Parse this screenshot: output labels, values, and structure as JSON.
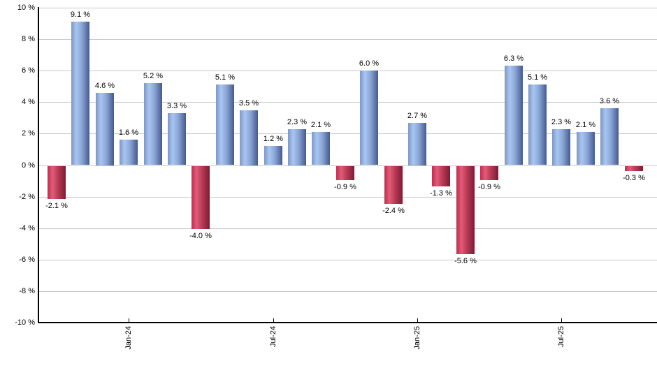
{
  "chart_data": {
    "type": "bar",
    "title": "",
    "unit": "%",
    "values": [
      -2.1,
      9.1,
      4.6,
      1.6,
      5.2,
      3.3,
      -4.0,
      5.1,
      3.5,
      1.2,
      2.3,
      2.1,
      -0.9,
      6.0,
      -2.4,
      2.7,
      -1.3,
      -5.6,
      -0.9,
      6.3,
      5.1,
      2.3,
      2.1,
      3.6,
      -0.3
    ],
    "data_labels": [
      "-2.1 %",
      "9.1 %",
      "4.6 %",
      "1.6 %",
      "5.2 %",
      "3.3 %",
      "-4.0 %",
      "5.1 %",
      "3.5 %",
      "1.2 %",
      "2.3 %",
      "2.1 %",
      "-0.9 %",
      "6.0 %",
      "-2.4 %",
      "2.7 %",
      "-1.3 %",
      "-5.6 %",
      "-0.9 %",
      "6.3 %",
      "5.1 %",
      "2.3 %",
      "2.1 %",
      "3.6 %",
      "-0.3 %"
    ],
    "y_axis": {
      "tick_labels": [
        "10 %",
        "8 %",
        "6 %",
        "4 %",
        "2 %",
        "0 %",
        "-2 %",
        "-4 %",
        "-6 %",
        "-8 %",
        "-10 %"
      ],
      "tick_values": [
        10,
        8,
        6,
        4,
        2,
        0,
        -2,
        -4,
        -6,
        -8,
        -10
      ],
      "range": [
        -10,
        10
      ]
    },
    "x_axis": {
      "ticks": [
        {
          "label": "Jan-24",
          "bar_index": 3
        },
        {
          "label": "Jul-24",
          "bar_index": 9
        },
        {
          "label": "Jan-25",
          "bar_index": 15
        },
        {
          "label": "Jul-25",
          "bar_index": 21
        }
      ]
    },
    "grid": true,
    "legend": "none",
    "colors": {
      "positive_gradient": [
        "#7b97c8",
        "#a9c5f0",
        "#8aa6d6",
        "#46598c"
      ],
      "negative_gradient": [
        "#c62a4e",
        "#e05c77",
        "#b83a55",
        "#7a1c34"
      ],
      "gridline": "#c8c8c8",
      "axis": "#000000",
      "label_text": "#000000",
      "background": "#ffffff"
    }
  }
}
